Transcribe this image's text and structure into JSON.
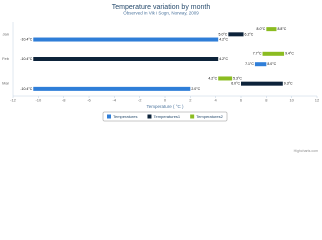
{
  "chart_data": {
    "type": "columnrange",
    "inverted": true,
    "title": "Temperature variation by month",
    "subtitle": "Observed in Vik i Sogn, Norway, 2009",
    "x_axis_title": "Temperature ( °C )",
    "credits": "Highcharts.com",
    "categories": [
      "Jan",
      "Feb",
      "Mar"
    ],
    "series": [
      {
        "name": "Temperatures",
        "color": "#2f7ed8",
        "values": [
          [
            -10.4,
            4.2
          ],
          [
            7.1,
            8.0
          ],
          [
            -10.4,
            2.0
          ]
        ],
        "value_labels": [
          [
            "-10.4°C",
            "4.2°C"
          ],
          [
            "7.1°C",
            "8.0°C"
          ],
          [
            "-10.4°C",
            "2.0°C"
          ]
        ]
      },
      {
        "name": "Temperatures1",
        "color": "#0d233a",
        "values": [
          [
            5.0,
            6.2
          ],
          [
            -10.4,
            4.2
          ],
          [
            6.0,
            9.3
          ]
        ],
        "value_labels": [
          [
            "5.0°C",
            "6.2°C"
          ],
          [
            "-10.4°C",
            "4.2°C"
          ],
          [
            "6.0°C",
            "9.3°C"
          ]
        ]
      },
      {
        "name": "Temperatures2",
        "color": "#8bbc21",
        "values": [
          [
            8.0,
            8.8
          ],
          [
            7.7,
            9.4
          ],
          [
            4.2,
            5.3
          ]
        ],
        "value_labels": [
          [
            "8.0°C",
            "8.8°C"
          ],
          [
            "7.7°C",
            "9.4°C"
          ],
          [
            "4.2°C",
            "5.3°C"
          ]
        ]
      }
    ],
    "xlim": [
      -12,
      12
    ],
    "xticks": [
      -12,
      -10,
      -8,
      -6,
      -4,
      -2,
      0,
      2,
      4,
      6,
      8,
      10,
      12
    ],
    "grid": false,
    "legend": "bottom"
  }
}
